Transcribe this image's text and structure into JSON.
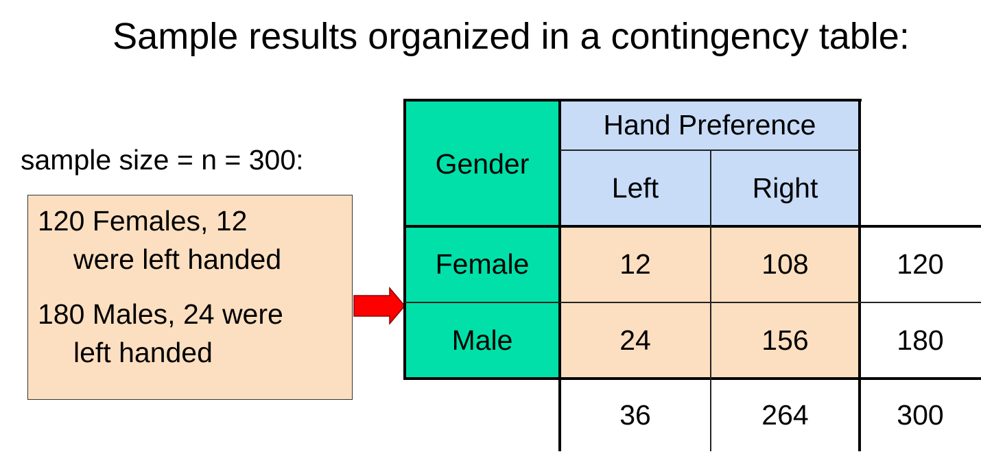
{
  "title": "Sample results organized in a contingency table:",
  "sample_size_label": "sample size = n = 300:",
  "info_box": {
    "line1": "120 Females, 12",
    "line2": "were left handed",
    "line3": "180 Males, 24 were",
    "line4": "left handed"
  },
  "table": {
    "corner_label": "Gender",
    "group_header": "Hand Preference",
    "columns": [
      "Left",
      "Right"
    ],
    "rows": [
      {
        "label": "Female",
        "left": "12",
        "right": "108",
        "total": "120"
      },
      {
        "label": "Male",
        "left": "24",
        "right": "156",
        "total": "180"
      }
    ],
    "column_totals": {
      "left": "36",
      "right": "264",
      "grand": "300"
    }
  },
  "colors": {
    "header_green": "#00e0a8",
    "header_blue": "#c8dcf8",
    "cell_peach": "#fcdfc0",
    "arrow_red": "#ff0000"
  }
}
